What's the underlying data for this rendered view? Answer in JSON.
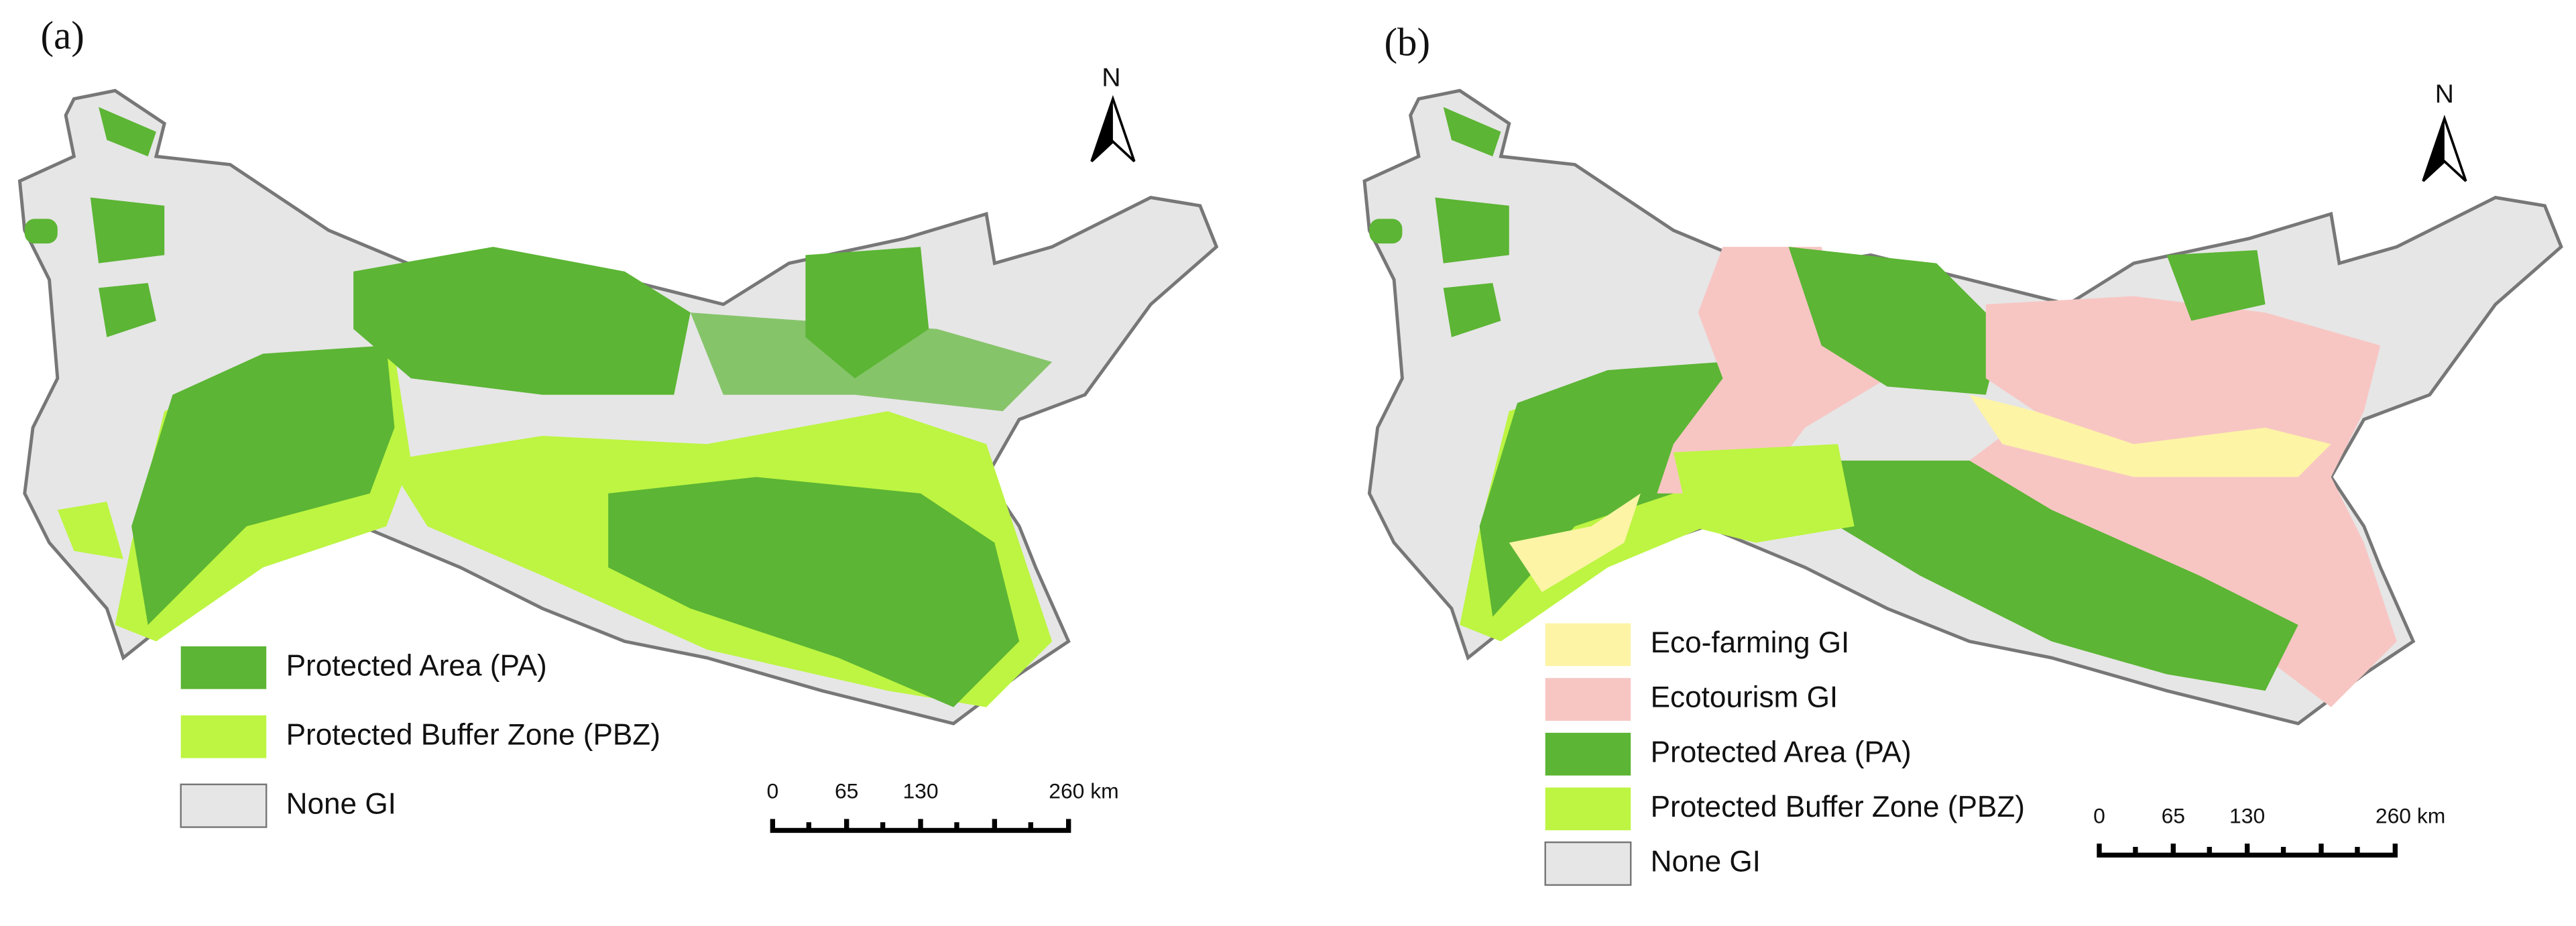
{
  "panels": [
    {
      "label": "(a)",
      "north": "N",
      "legend": [
        {
          "label": "Protected Area (PA)",
          "color": "#5cb534"
        },
        {
          "label": "Protected Buffer Zone (PBZ)",
          "color": "#bdf542"
        },
        {
          "label": "None GI",
          "color": "#e6e6e6"
        }
      ],
      "scale_labels": [
        "0",
        "65",
        "130",
        "260 km"
      ]
    },
    {
      "label": "(b)",
      "north": "N",
      "legend": [
        {
          "label": "Eco-farming GI",
          "color": "#fdf4a6"
        },
        {
          "label": "Ecotourism GI",
          "color": "#f7c6c3"
        },
        {
          "label": "Protected Area (PA)",
          "color": "#5cb534"
        },
        {
          "label": "Protected Buffer Zone (PBZ)",
          "color": "#bdf542"
        },
        {
          "label": "None GI",
          "color": "#e6e6e6"
        }
      ],
      "scale_labels": [
        "0",
        "65",
        "130",
        "260 km"
      ]
    }
  ]
}
